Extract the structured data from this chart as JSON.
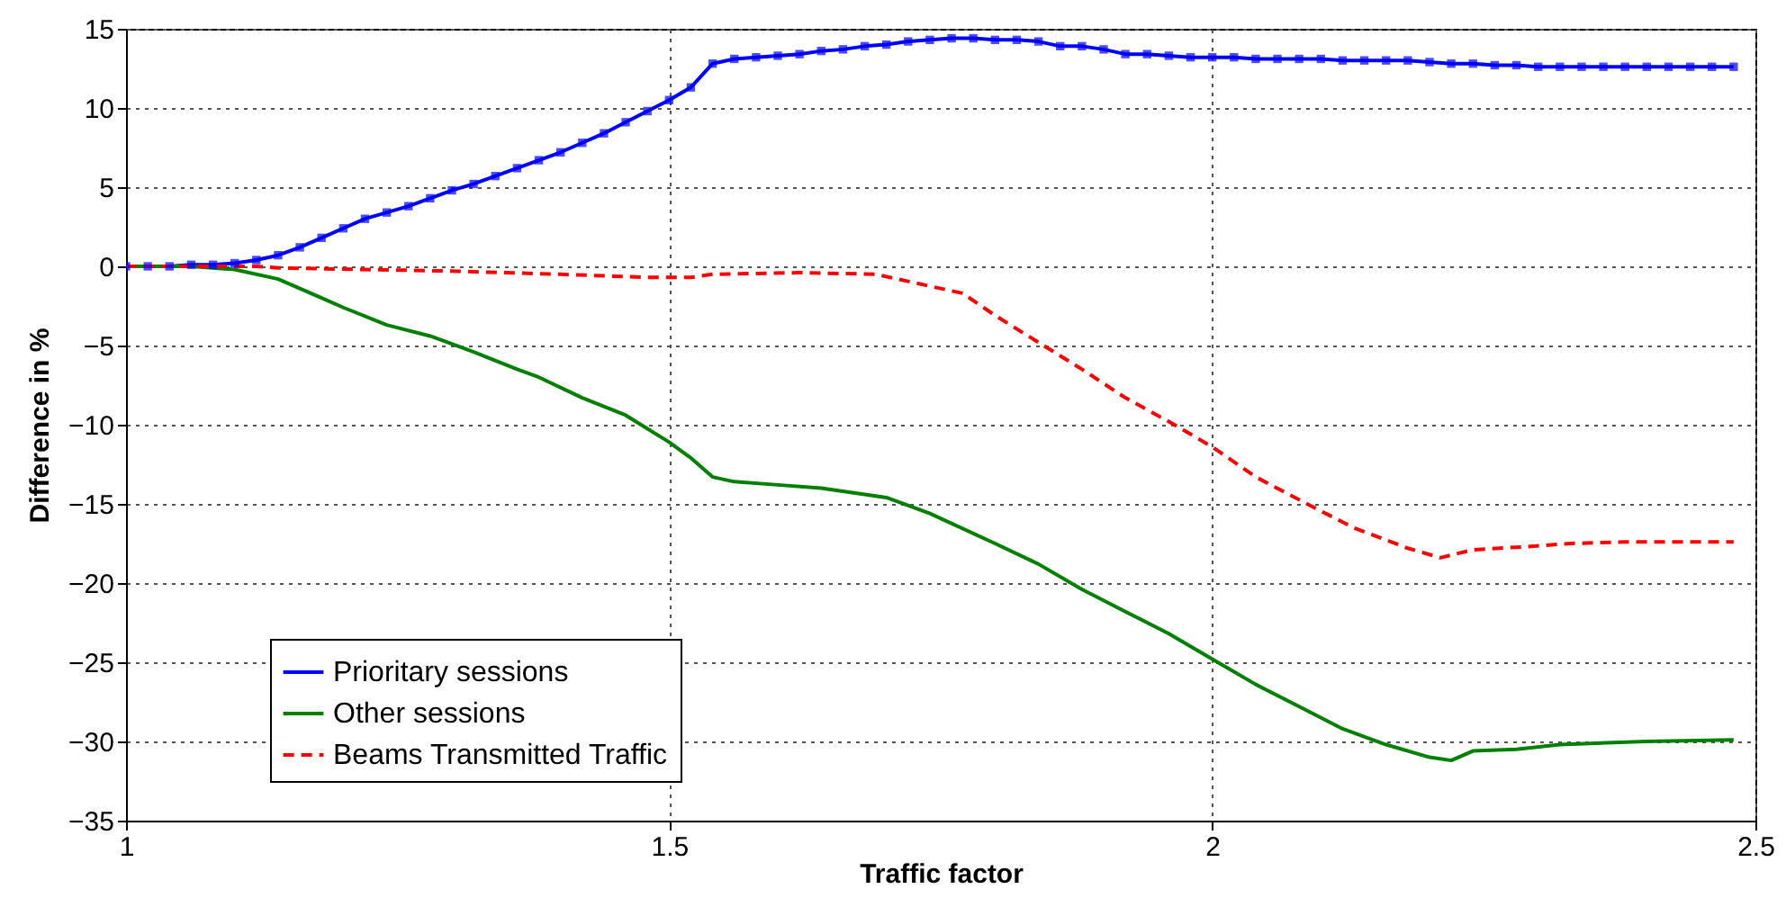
{
  "chart_data": {
    "type": "line",
    "xlabel": "Traffic factor",
    "ylabel": "Difference in %",
    "xlim": [
      1,
      2.5
    ],
    "xticks": [
      1,
      1.5,
      2,
      2.5
    ],
    "ylim": [
      -35,
      15
    ],
    "yticks": [
      -35,
      -30,
      -25,
      -20,
      -15,
      -10,
      -5,
      0,
      5,
      10,
      15
    ],
    "grid": true,
    "legend": "bottom left",
    "series": [
      {
        "name": "Prioritary sessions",
        "color": "#0000ff",
        "marker": "square",
        "line_style": "solid",
        "x": [
          1,
          1.02,
          1.04,
          1.06,
          1.08,
          1.1,
          1.12,
          1.14,
          1.16,
          1.18,
          1.2,
          1.22,
          1.24,
          1.26,
          1.28,
          1.3,
          1.32,
          1.34,
          1.36,
          1.38,
          1.4,
          1.42,
          1.44,
          1.46,
          1.48,
          1.5,
          1.52,
          1.54,
          1.56,
          1.58,
          1.6,
          1.62,
          1.64,
          1.66,
          1.68,
          1.7,
          1.72,
          1.74,
          1.76,
          1.78,
          1.8,
          1.82,
          1.84,
          1.86,
          1.88,
          1.9,
          1.92,
          1.94,
          1.96,
          1.98,
          2,
          2.02,
          2.04,
          2.06,
          2.08,
          2.1,
          2.12,
          2.14,
          2.16,
          2.18,
          2.2,
          2.22,
          2.24,
          2.26,
          2.28,
          2.3,
          2.32,
          2.34,
          2.36,
          2.38,
          2.4,
          2.42,
          2.44,
          2.46,
          2.48
        ],
        "values": [
          0,
          0,
          0,
          0.1,
          0.1,
          0.2,
          0.4,
          0.7,
          1.2,
          1.8,
          2.4,
          3,
          3.4,
          3.8,
          4.3,
          4.8,
          5.2,
          5.7,
          6.2,
          6.7,
          7.2,
          7.8,
          8.4,
          9.1,
          9.8,
          10.5,
          11.3,
          12.8,
          13.1,
          13.2,
          13.3,
          13.4,
          13.6,
          13.7,
          13.9,
          14,
          14.2,
          14.3,
          14.4,
          14.4,
          14.3,
          14.3,
          14.2,
          13.9,
          13.9,
          13.7,
          13.4,
          13.4,
          13.3,
          13.2,
          13.2,
          13.2,
          13.1,
          13.1,
          13.1,
          13.1,
          13,
          13,
          13,
          13,
          12.9,
          12.8,
          12.8,
          12.7,
          12.7,
          12.6,
          12.6,
          12.6,
          12.6,
          12.6,
          12.6,
          12.6,
          12.6,
          12.6,
          12.6
        ]
      },
      {
        "name": "Other sessions",
        "color": "#008000",
        "marker": "none",
        "line_style": "solid",
        "x": [
          1,
          1.06,
          1.1,
          1.14,
          1.18,
          1.2,
          1.24,
          1.28,
          1.32,
          1.36,
          1.38,
          1.42,
          1.46,
          1.5,
          1.52,
          1.54,
          1.56,
          1.6,
          1.64,
          1.68,
          1.7,
          1.74,
          1.8,
          1.84,
          1.88,
          1.92,
          1.96,
          2,
          2.04,
          2.08,
          2.12,
          2.16,
          2.2,
          2.22,
          2.24,
          2.28,
          2.32,
          2.4,
          2.48
        ],
        "values": [
          0,
          0,
          -0.2,
          -0.8,
          -2,
          -2.6,
          -3.7,
          -4.4,
          -5.4,
          -6.5,
          -7,
          -8.3,
          -9.4,
          -11.1,
          -12.1,
          -13.3,
          -13.6,
          -13.8,
          -14,
          -14.4,
          -14.6,
          -15.6,
          -17.5,
          -18.8,
          -20.4,
          -21.8,
          -23.2,
          -24.8,
          -26.4,
          -27.8,
          -29.2,
          -30.2,
          -31,
          -31.2,
          -30.6,
          -30.5,
          -30.2,
          -30,
          -29.9
        ]
      },
      {
        "name": "Beams Transmitted Traffic",
        "color": "#ff0000",
        "marker": "none",
        "line_style": "dashed",
        "x": [
          1,
          1.12,
          1.14,
          1.22,
          1.3,
          1.4,
          1.48,
          1.52,
          1.54,
          1.62,
          1.69,
          1.71,
          1.75,
          1.77,
          1.8,
          1.84,
          1.88,
          1.92,
          1.96,
          2,
          2.04,
          2.09,
          2.13,
          2.18,
          2.21,
          2.24,
          2.29,
          2.33,
          2.38,
          2.48
        ],
        "values": [
          0,
          0,
          -0.1,
          -0.2,
          -0.3,
          -0.5,
          -0.7,
          -0.7,
          -0.5,
          -0.4,
          -0.5,
          -0.8,
          -1.4,
          -1.7,
          -3.1,
          -4.8,
          -6.5,
          -8.3,
          -9.8,
          -11.4,
          -13.3,
          -15.1,
          -16.5,
          -17.8,
          -18.4,
          -17.9,
          -17.7,
          -17.5,
          -17.4,
          -17.4
        ]
      }
    ]
  }
}
